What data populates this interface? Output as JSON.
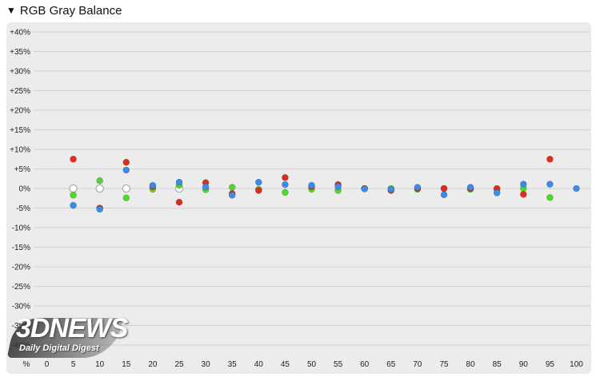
{
  "header": {
    "title": "RGB Gray Balance"
  },
  "chart_data": {
    "type": "scatter",
    "title": "RGB Gray Balance",
    "xlabel": "",
    "ylabel": "",
    "x": [
      0,
      5,
      10,
      15,
      20,
      25,
      30,
      35,
      40,
      45,
      50,
      55,
      60,
      65,
      70,
      75,
      80,
      85,
      90,
      95,
      100
    ],
    "x_tick_labels": [
      "%",
      "0",
      "5",
      "10",
      "15",
      "20",
      "25",
      "30",
      "35",
      "40",
      "45",
      "50",
      "55",
      "60",
      "65",
      "70",
      "75",
      "80",
      "85",
      "90",
      "95",
      "100"
    ],
    "y_ticks": [
      40,
      35,
      30,
      25,
      20,
      15,
      10,
      5,
      0,
      -5,
      -10,
      -15,
      -20,
      -25,
      -30,
      -35,
      -40
    ],
    "y_tick_labels": [
      "+40%",
      "+35%",
      "+30%",
      "+25%",
      "+20%",
      "+15%",
      "+10%",
      "+5%",
      "0%",
      "-5%",
      "-10%",
      "-15%",
      "-20%",
      "-25%",
      "-30%",
      "-35%",
      "-40%"
    ],
    "ylim": [
      -45,
      40
    ],
    "grid": true,
    "series": [
      {
        "color": "#d9301d",
        "x": [
          5,
          10,
          15,
          20,
          25,
          30,
          35,
          40,
          45,
          50,
          55,
          60,
          65,
          70,
          75,
          80,
          85,
          90,
          95
        ],
        "values": [
          7.5,
          -5.0,
          6.7,
          0.5,
          -3.5,
          1.5,
          -1.3,
          -0.5,
          2.8,
          0.5,
          1.0,
          0.0,
          -0.5,
          0.0,
          0.0,
          0.0,
          0.0,
          -1.5,
          7.5
        ]
      },
      {
        "color": "#4fd82a",
        "x": [
          5,
          10,
          15,
          20,
          25,
          30,
          35,
          40,
          45,
          50,
          55,
          60,
          65,
          70,
          75,
          80,
          85,
          90,
          95
        ],
        "values": [
          -1.7,
          2.0,
          -2.4,
          -0.2,
          0.8,
          -0.3,
          0.3,
          -0.2,
          -1.0,
          -0.2,
          -0.5,
          0.0,
          0.0,
          -0.2,
          0.0,
          -0.2,
          -0.2,
          0.0,
          -2.3
        ]
      },
      {
        "color": "#3c8be8",
        "x": [
          5,
          10,
          15,
          20,
          25,
          30,
          35,
          40,
          45,
          50,
          55,
          60,
          65,
          70,
          75,
          80,
          85,
          90,
          95,
          100
        ],
        "values": [
          -4.3,
          -5.3,
          4.7,
          0.8,
          1.6,
          0.4,
          -1.7,
          1.6,
          1.0,
          0.8,
          0.5,
          -0.1,
          -0.2,
          0.3,
          -1.6,
          0.3,
          -1.1,
          1.1,
          1.1,
          0.0
        ]
      },
      {
        "color": "#ffffff",
        "hollow": true,
        "x": [
          5,
          10,
          15,
          25
        ],
        "values": [
          0.0,
          0.0,
          0.0,
          0.0
        ]
      }
    ]
  },
  "watermark": {
    "brand": "3DNEWS",
    "tagline": "Daily Digital Digest"
  }
}
